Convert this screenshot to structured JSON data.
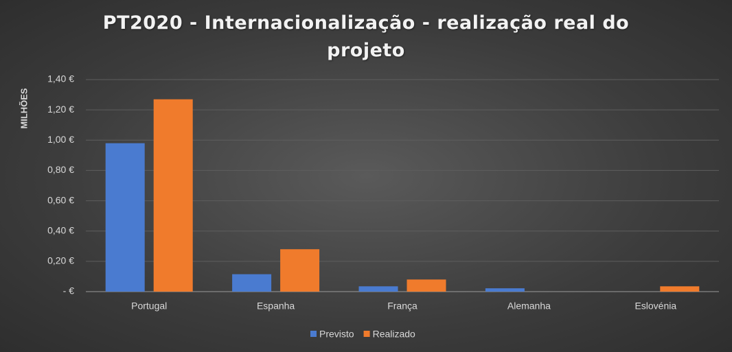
{
  "chart_data": {
    "type": "bar",
    "title": "PT2020 - Internacionalização - realização real do projeto",
    "y_axis_label": "MILHÕES",
    "categories": [
      "Portugal",
      "Espanha",
      "França",
      "Alemanha",
      "Eslovénia"
    ],
    "series": [
      {
        "name": "Previsto",
        "color": "#4a7bd0",
        "values": [
          0.98,
          0.115,
          0.035,
          0.022,
          0
        ]
      },
      {
        "name": "Realizado",
        "color": "#f07b2c",
        "values": [
          1.27,
          0.28,
          0.08,
          0,
          0.035
        ]
      }
    ],
    "ylim": [
      0,
      1.4
    ],
    "yticks": [
      {
        "value": 0,
        "label": "-   €"
      },
      {
        "value": 0.2,
        "label": "0,20 €"
      },
      {
        "value": 0.4,
        "label": "0,40 €"
      },
      {
        "value": 0.6,
        "label": "0,60 €"
      },
      {
        "value": 0.8,
        "label": "0,80 €"
      },
      {
        "value": 1.0,
        "label": "1,00 €"
      },
      {
        "value": 1.2,
        "label": "1,20 €"
      },
      {
        "value": 1.4,
        "label": "1,40 €"
      }
    ],
    "grid": true,
    "legend": "bottom"
  }
}
